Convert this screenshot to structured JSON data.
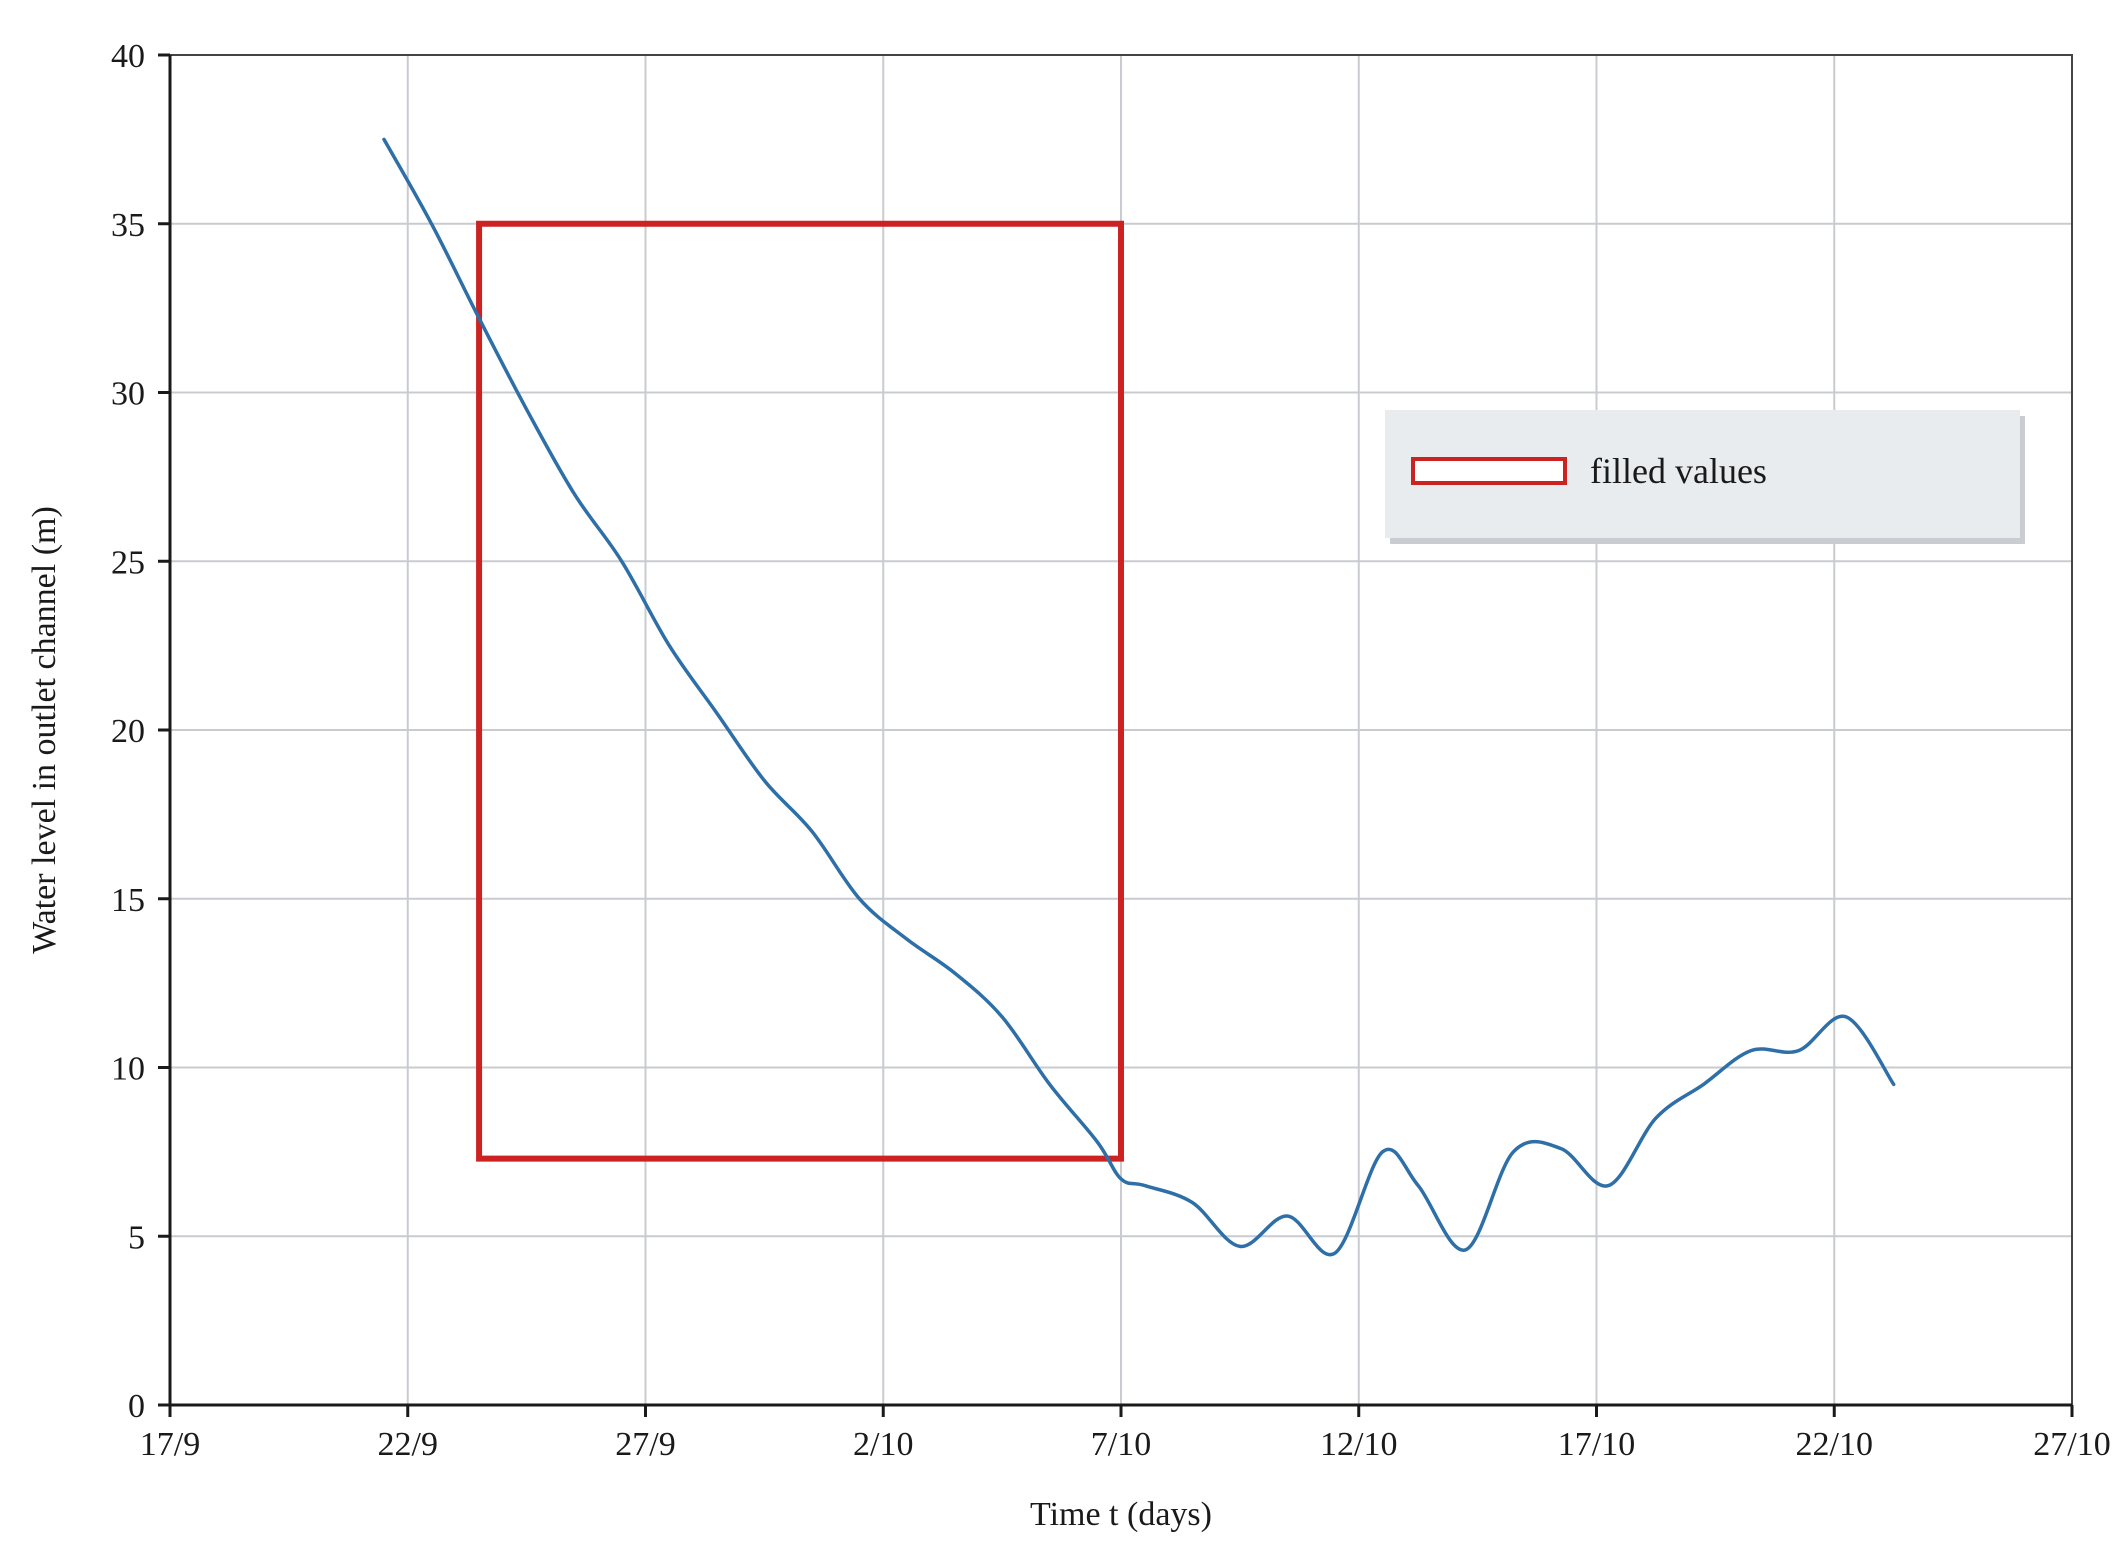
{
  "chart_data": {
    "type": "line",
    "title": "",
    "xlabel": "Time t (days)",
    "ylabel": "Water level in outlet channel (m)",
    "x_tick_labels": [
      "17/9",
      "22/9",
      "27/9",
      "2/10",
      "7/10",
      "12/10",
      "17/10",
      "22/10",
      "27/10"
    ],
    "x_tick_dates": [
      "2021-09-17",
      "2021-09-22",
      "2021-09-27",
      "2021-10-02",
      "2021-10-07",
      "2021-10-12",
      "2021-10-17",
      "2021-10-22",
      "2021-10-27"
    ],
    "xlim": [
      "2021-09-17",
      "2021-10-27"
    ],
    "y_ticks": [
      0,
      5,
      10,
      15,
      20,
      25,
      30,
      35,
      40
    ],
    "ylim": [
      0,
      40
    ],
    "grid": true,
    "legend_position": "top-right",
    "series": [
      {
        "color": "#2e6fa8",
        "points": [
          {
            "x": "2021-09-21 12:00",
            "y": 37.5
          },
          {
            "x": "2021-09-22 12:00",
            "y": 35.0
          },
          {
            "x": "2021-09-23 12:00",
            "y": 32.2
          },
          {
            "x": "2021-09-24 12:00",
            "y": 29.5
          },
          {
            "x": "2021-09-25 12:00",
            "y": 27.0
          },
          {
            "x": "2021-09-26 12:00",
            "y": 25.0
          },
          {
            "x": "2021-09-27 12:00",
            "y": 22.5
          },
          {
            "x": "2021-09-28 12:00",
            "y": 20.5
          },
          {
            "x": "2021-09-29 12:00",
            "y": 18.5
          },
          {
            "x": "2021-09-30 12:00",
            "y": 17.0
          },
          {
            "x": "2021-10-01 12:00",
            "y": 15.0
          },
          {
            "x": "2021-10-02 12:00",
            "y": 13.8
          },
          {
            "x": "2021-10-03 12:00",
            "y": 12.8
          },
          {
            "x": "2021-10-04 12:00",
            "y": 11.5
          },
          {
            "x": "2021-10-05 12:00",
            "y": 9.5
          },
          {
            "x": "2021-10-06 12:00",
            "y": 7.8
          },
          {
            "x": "2021-10-07 00:00",
            "y": 6.7
          },
          {
            "x": "2021-10-07 12:00",
            "y": 6.5
          },
          {
            "x": "2021-10-08 12:00",
            "y": 6.0
          },
          {
            "x": "2021-10-09 12:00",
            "y": 4.7
          },
          {
            "x": "2021-10-10 12:00",
            "y": 5.6
          },
          {
            "x": "2021-10-11 12:00",
            "y": 4.5
          },
          {
            "x": "2021-10-12 12:00",
            "y": 7.5
          },
          {
            "x": "2021-10-13 06:00",
            "y": 6.5
          },
          {
            "x": "2021-10-14 06:00",
            "y": 4.6
          },
          {
            "x": "2021-10-15 06:00",
            "y": 7.5
          },
          {
            "x": "2021-10-16 06:00",
            "y": 7.6
          },
          {
            "x": "2021-10-17 06:00",
            "y": 6.5
          },
          {
            "x": "2021-10-18 06:00",
            "y": 8.5
          },
          {
            "x": "2021-10-19 06:00",
            "y": 9.5
          },
          {
            "x": "2021-10-20 06:00",
            "y": 10.5
          },
          {
            "x": "2021-10-21 06:00",
            "y": 10.5
          },
          {
            "x": "2021-10-22 06:00",
            "y": 11.5
          },
          {
            "x": "2021-10-23 06:00",
            "y": 9.5
          }
        ]
      }
    ],
    "highlight_box": {
      "x_start": "2021-09-23 12:00",
      "x_end": "2021-10-07 00:00",
      "y_min": 7.3,
      "y_max": 35.0,
      "color": "#cc2222"
    },
    "legend": {
      "entries": [
        {
          "label": "filled values",
          "swatch": "red-outline-box",
          "color": "#cc2222"
        }
      ],
      "background": "#e9ecef"
    },
    "colors": {
      "grid": "#c8ccd0",
      "axis": "#1a1a1a",
      "line": "#2e6fa8",
      "highlight": "#cc2222"
    }
  }
}
